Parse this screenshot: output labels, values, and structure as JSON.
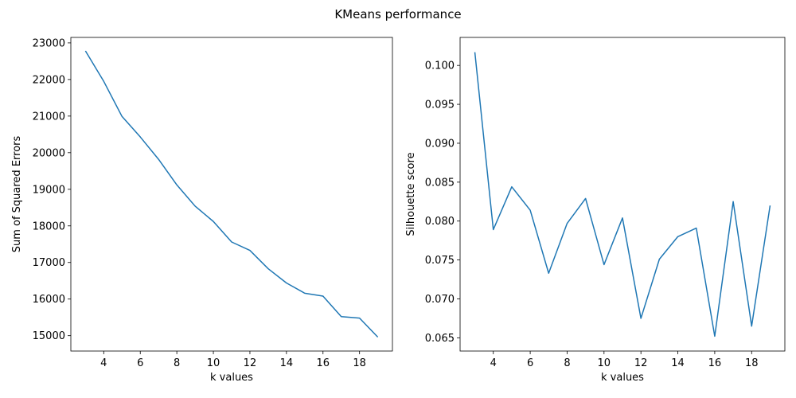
{
  "figure": {
    "suptitle": "KMeans performance"
  },
  "chart_data": [
    {
      "type": "line",
      "title": "",
      "xlabel": "k values",
      "ylabel": "Sum of Squared Errors",
      "xlim": [
        2.2,
        19.8
      ],
      "ylim": [
        14580,
        23150
      ],
      "xticks": [
        4,
        6,
        8,
        10,
        12,
        14,
        16,
        18
      ],
      "yticks": [
        15000,
        16000,
        17000,
        18000,
        19000,
        20000,
        21000,
        22000,
        23000
      ],
      "grid": false,
      "color": "#1f77b4",
      "x": [
        3,
        4,
        5,
        6,
        7,
        8,
        9,
        10,
        11,
        12,
        13,
        14,
        15,
        16,
        17,
        18,
        19
      ],
      "y": [
        22780,
        21950,
        20990,
        20430,
        19820,
        19120,
        18540,
        18120,
        17560,
        17330,
        16830,
        16440,
        16160,
        16080,
        15520,
        15480,
        14960
      ]
    },
    {
      "type": "line",
      "title": "",
      "xlabel": "k values",
      "ylabel": "Silhouette score",
      "xlim": [
        2.2,
        19.8
      ],
      "ylim": [
        0.0633,
        0.1036
      ],
      "xticks": [
        4,
        6,
        8,
        10,
        12,
        14,
        16,
        18
      ],
      "yticks": [
        0.065,
        0.07,
        0.075,
        0.08,
        0.085,
        0.09,
        0.095,
        0.1
      ],
      "ytick_labels": [
        "0.065",
        "0.070",
        "0.075",
        "0.080",
        "0.085",
        "0.090",
        "0.095",
        "0.100"
      ],
      "grid": false,
      "color": "#1f77b4",
      "x": [
        3,
        4,
        5,
        6,
        7,
        8,
        9,
        10,
        11,
        12,
        13,
        14,
        15,
        16,
        17,
        18,
        19
      ],
      "y": [
        0.1017,
        0.0789,
        0.0844,
        0.0814,
        0.0733,
        0.0797,
        0.0829,
        0.0744,
        0.0804,
        0.0675,
        0.0751,
        0.078,
        0.0791,
        0.0652,
        0.0825,
        0.0665,
        0.082
      ]
    }
  ]
}
